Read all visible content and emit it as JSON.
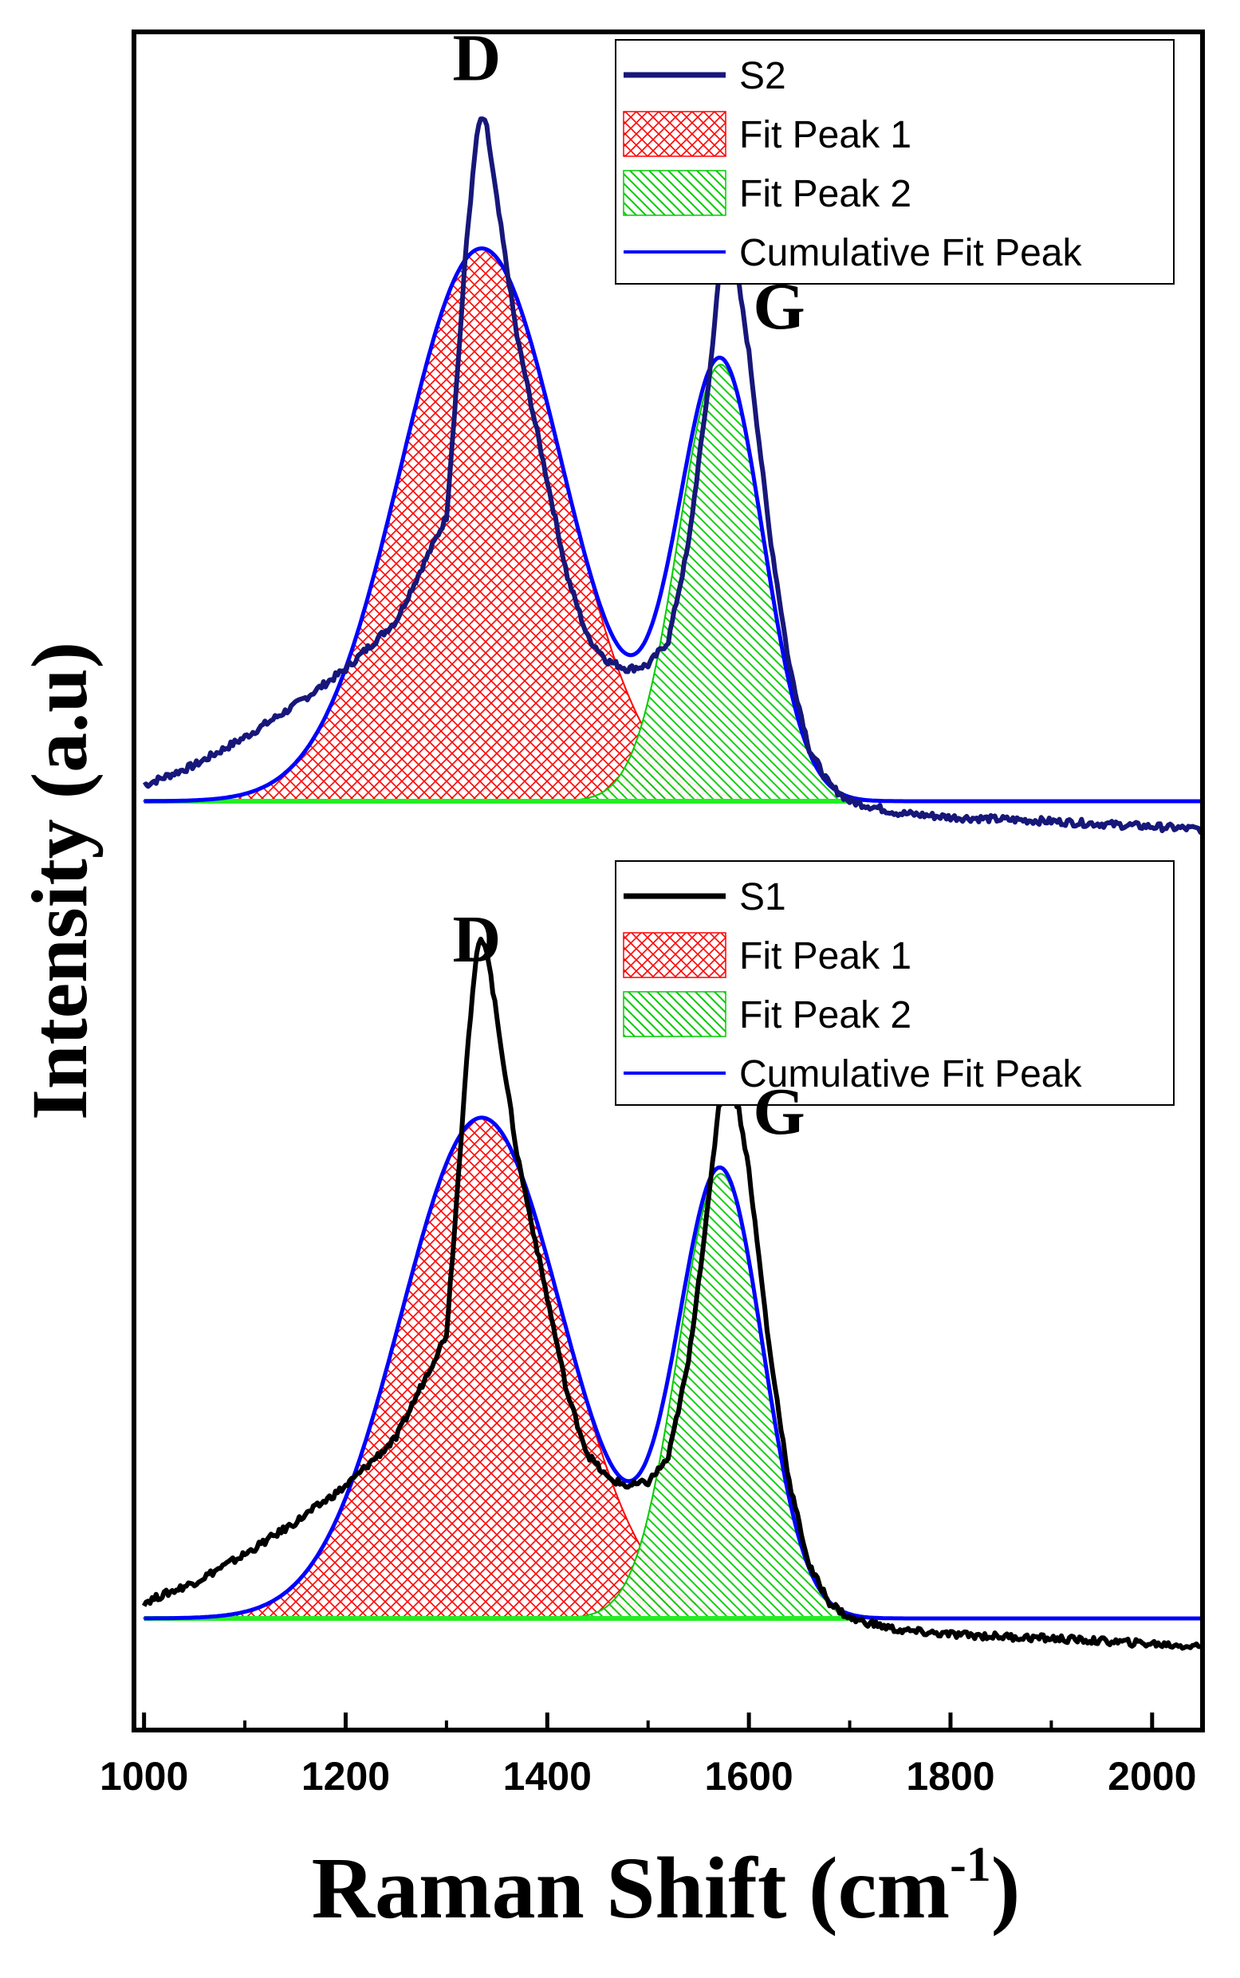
{
  "chart_data": {
    "type": "line",
    "title": "",
    "xlabel": "Raman Shift (cm",
    "xlabel_sup": "-1",
    "xlabel_close": ")",
    "ylabel": "Intensity (a.u)",
    "xlim": [
      990,
      2050
    ],
    "ylim": [
      0,
      2
    ],
    "xticks": [
      1000,
      1200,
      1400,
      1600,
      1800,
      2000
    ],
    "panels": [
      {
        "id": "top",
        "legend_position": "top-right",
        "offset": 1.0,
        "sample": {
          "name": "S2",
          "color": "#17177a",
          "points": [
            [
              1000,
              0.02
            ],
            [
              1050,
              0.045
            ],
            [
              1100,
              0.08
            ],
            [
              1150,
              0.12
            ],
            [
              1200,
              0.165
            ],
            [
              1250,
              0.225
            ],
            [
              1300,
              0.355
            ],
            [
              1310,
              0.52
            ],
            [
              1320,
              0.7
            ],
            [
              1330,
              0.83
            ],
            [
              1335,
              0.855
            ],
            [
              1340,
              0.84
            ],
            [
              1350,
              0.75
            ],
            [
              1370,
              0.58
            ],
            [
              1400,
              0.4
            ],
            [
              1420,
              0.28
            ],
            [
              1440,
              0.205
            ],
            [
              1460,
              0.175
            ],
            [
              1480,
              0.165
            ],
            [
              1500,
              0.17
            ],
            [
              1520,
              0.2
            ],
            [
              1540,
              0.32
            ],
            [
              1560,
              0.52
            ],
            [
              1570,
              0.65
            ],
            [
              1580,
              0.68
            ],
            [
              1590,
              0.645
            ],
            [
              1600,
              0.56
            ],
            [
              1620,
              0.34
            ],
            [
              1640,
              0.17
            ],
            [
              1660,
              0.065
            ],
            [
              1680,
              0.02
            ],
            [
              1700,
              0.0
            ],
            [
              1750,
              -0.015
            ],
            [
              1800,
              -0.02
            ],
            [
              1900,
              -0.025
            ],
            [
              2050,
              -0.035
            ]
          ]
        },
        "peak1": {
          "name": "Fit Peak 1",
          "color": "#ff0000",
          "center": 1335,
          "amplitude": 0.69,
          "sigma": 80
        },
        "peak2": {
          "name": "Fit Peak 2",
          "color": "#00cc00",
          "center": 1572,
          "amplitude": 0.545,
          "sigma": 42
        },
        "cumulative": {
          "name": "Cumulative Fit Peak",
          "color": "#0000ff"
        },
        "annotations": [
          {
            "text": "D",
            "x": 1330,
            "y": 0.9
          },
          {
            "text": "G",
            "x": 1630,
            "y": 0.59
          }
        ]
      },
      {
        "id": "bottom",
        "legend_position": "top-right",
        "offset": 0.0,
        "sample": {
          "name": "S1",
          "color": "#000000",
          "points": [
            [
              1000,
              0.02
            ],
            [
              1050,
              0.045
            ],
            [
              1100,
              0.08
            ],
            [
              1150,
              0.12
            ],
            [
              1200,
              0.165
            ],
            [
              1250,
              0.225
            ],
            [
              1300,
              0.355
            ],
            [
              1310,
              0.52
            ],
            [
              1320,
              0.7
            ],
            [
              1330,
              0.83
            ],
            [
              1335,
              0.85
            ],
            [
              1340,
              0.835
            ],
            [
              1350,
              0.75
            ],
            [
              1370,
              0.58
            ],
            [
              1400,
              0.4
            ],
            [
              1420,
              0.28
            ],
            [
              1440,
              0.205
            ],
            [
              1460,
              0.175
            ],
            [
              1480,
              0.165
            ],
            [
              1500,
              0.17
            ],
            [
              1520,
              0.2
            ],
            [
              1540,
              0.32
            ],
            [
              1560,
              0.52
            ],
            [
              1570,
              0.64
            ],
            [
              1580,
              0.665
            ],
            [
              1590,
              0.635
            ],
            [
              1600,
              0.56
            ],
            [
              1620,
              0.34
            ],
            [
              1640,
              0.17
            ],
            [
              1660,
              0.065
            ],
            [
              1680,
              0.02
            ],
            [
              1700,
              0.0
            ],
            [
              1750,
              -0.015
            ],
            [
              1800,
              -0.02
            ],
            [
              1900,
              -0.025
            ],
            [
              2050,
              -0.035
            ]
          ]
        },
        "peak1": {
          "name": "Fit Peak 1",
          "color": "#ff0000",
          "center": 1335,
          "amplitude": 0.625,
          "sigma": 80
        },
        "peak2": {
          "name": "Fit Peak 2",
          "color": "#00cc00",
          "center": 1572,
          "amplitude": 0.555,
          "sigma": 42
        },
        "cumulative": {
          "name": "Cumulative Fit Peak",
          "color": "#0000ff"
        },
        "annotations": [
          {
            "text": "D",
            "x": 1330,
            "y": 0.82
          },
          {
            "text": "G",
            "x": 1630,
            "y": 0.605
          }
        ]
      }
    ]
  }
}
